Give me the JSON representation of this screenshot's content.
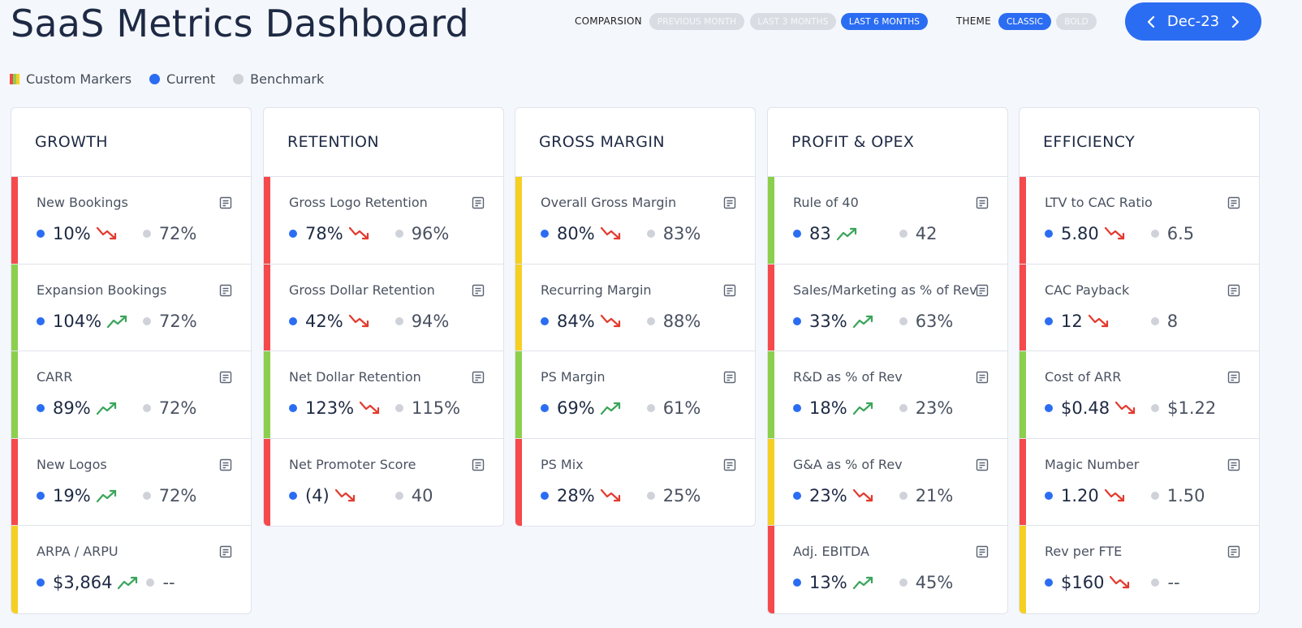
{
  "title": "SaaS Metrics Dashboard",
  "controls": {
    "comparison_label": "COMPARSION",
    "comparison_options": [
      "PREVIOUS MONTH",
      "LAST 3 MONTHS",
      "LAST 6 MONTHS"
    ],
    "comparison_selected": "LAST 6 MONTHS",
    "theme_label": "THEME",
    "theme_options": [
      "CLASSIC",
      "BOLD"
    ],
    "theme_selected": "CLASSIC",
    "period": "Dec-23"
  },
  "legend": {
    "custom_markers": "Custom Markers",
    "current": "Current",
    "benchmark": "Benchmark"
  },
  "colors": {
    "red": "#f5494c",
    "green": "#8ccf4d",
    "yellow": "#f5d023",
    "accent": "#2b6df2",
    "trend_up": "#3aa55a",
    "trend_down": "#e23b2f"
  },
  "columns": [
    {
      "title": "GROWTH",
      "metrics": [
        {
          "name": "New Bookings",
          "status": "red",
          "current": "10%",
          "trend": "down",
          "benchmark": "72%"
        },
        {
          "name": "Expansion Bookings",
          "status": "green",
          "current": "104%",
          "trend": "up",
          "benchmark": "72%"
        },
        {
          "name": "CARR",
          "status": "green",
          "current": "89%",
          "trend": "up",
          "benchmark": "72%"
        },
        {
          "name": "New Logos",
          "status": "red",
          "current": "19%",
          "trend": "up",
          "benchmark": "72%"
        },
        {
          "name": "ARPA / ARPU",
          "status": "yellow",
          "current": "$3,864",
          "trend": "up",
          "benchmark": "--"
        }
      ]
    },
    {
      "title": "RETENTION",
      "metrics": [
        {
          "name": "Gross Logo Retention",
          "status": "red",
          "current": "78%",
          "trend": "down",
          "benchmark": "96%"
        },
        {
          "name": "Gross Dollar Retention",
          "status": "red",
          "current": "42%",
          "trend": "down",
          "benchmark": "94%"
        },
        {
          "name": "Net Dollar Retention",
          "status": "green",
          "current": "123%",
          "trend": "down",
          "benchmark": "115%"
        },
        {
          "name": "Net Promoter Score",
          "status": "red",
          "current": "(4)",
          "trend": "down",
          "benchmark": "40"
        }
      ]
    },
    {
      "title": "GROSS MARGIN",
      "metrics": [
        {
          "name": "Overall Gross Margin",
          "status": "yellow",
          "current": "80%",
          "trend": "down",
          "benchmark": "83%"
        },
        {
          "name": "Recurring Margin",
          "status": "yellow",
          "current": "84%",
          "trend": "down",
          "benchmark": "88%"
        },
        {
          "name": "PS Margin",
          "status": "green",
          "current": "69%",
          "trend": "up",
          "benchmark": "61%"
        },
        {
          "name": "PS Mix",
          "status": "red",
          "current": "28%",
          "trend": "down",
          "benchmark": "25%"
        }
      ]
    },
    {
      "title": "PROFIT & OPEX",
      "metrics": [
        {
          "name": "Rule of 40",
          "status": "green",
          "current": "83",
          "trend": "up",
          "benchmark": "42"
        },
        {
          "name": "Sales/Marketing as % of Rev",
          "status": "red",
          "current": "33%",
          "trend": "up",
          "benchmark": "63%"
        },
        {
          "name": "R&D as % of Rev",
          "status": "green",
          "current": "18%",
          "trend": "up",
          "benchmark": "23%"
        },
        {
          "name": "G&A as % of Rev",
          "status": "yellow",
          "current": "23%",
          "trend": "down",
          "benchmark": "21%"
        },
        {
          "name": "Adj. EBITDA",
          "status": "red",
          "current": "13%",
          "trend": "up",
          "benchmark": "45%"
        }
      ]
    },
    {
      "title": "EFFICIENCY",
      "metrics": [
        {
          "name": "LTV to CAC Ratio",
          "status": "red",
          "current": "5.80",
          "trend": "down",
          "benchmark": "6.5"
        },
        {
          "name": "CAC Payback",
          "status": "red",
          "current": "12",
          "trend": "down",
          "benchmark": "8"
        },
        {
          "name": "Cost of ARR",
          "status": "green",
          "current": "$0.48",
          "trend": "down",
          "benchmark": "$1.22"
        },
        {
          "name": "Magic Number",
          "status": "red",
          "current": "1.20",
          "trend": "down",
          "benchmark": "1.50"
        },
        {
          "name": "Rev per FTE",
          "status": "yellow",
          "current": "$160",
          "trend": "down",
          "benchmark": "--"
        }
      ]
    }
  ]
}
